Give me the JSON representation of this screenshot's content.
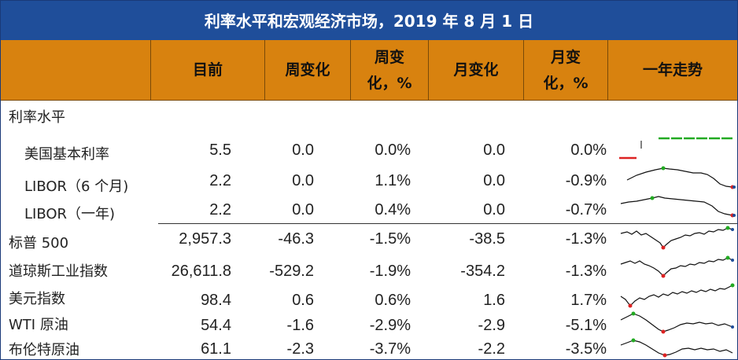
{
  "title": "利率水平和宏观经济市场，2019 年 8 月 1 日",
  "headers": {
    "current": "目前",
    "week_change": "周变化",
    "week_change_pct_1": "周变",
    "week_change_pct_2": "化，%",
    "month_change": "月变化",
    "month_change_pct_1": "月变",
    "month_change_pct_2": "化，%",
    "trend": "一年走势"
  },
  "section_rates": "利率水平",
  "rows": [
    {
      "label": "美国基本利率",
      "current": "5.5",
      "week": "0.0",
      "week_pct": "0.0%",
      "month": "0.0",
      "month_pct": "0.0%"
    },
    {
      "label": "LIBOR（6 个月)",
      "current": "2.2",
      "week": "0.0",
      "week_pct": "1.1%",
      "month": "0.0",
      "month_pct": "-0.9%"
    },
    {
      "label": "LIBOR（一年)",
      "current": "2.2",
      "week": "0.0",
      "week_pct": "0.4%",
      "month": "0.0",
      "month_pct": "-0.7%"
    },
    {
      "label": "标普 500",
      "current": "2,957.3",
      "week": "-46.3",
      "week_pct": "-1.5%",
      "month": "-38.5",
      "month_pct": "-1.3%"
    },
    {
      "label": "道琼斯工业指数",
      "current": "26,611.8",
      "week": "-529.2",
      "week_pct": "-1.9%",
      "month": "-354.2",
      "month_pct": "-1.3%"
    },
    {
      "label": "美元指数",
      "current": "98.4",
      "week": "0.6",
      "week_pct": "0.6%",
      "month": "1.6",
      "month_pct": "1.7%"
    },
    {
      "label": "WTI 原油",
      "current": "54.4",
      "week": "-1.6",
      "week_pct": "-2.9%",
      "month": "-2.9",
      "month_pct": "-5.1%"
    },
    {
      "label": "布伦特原油",
      "current": "61.1",
      "week": "-2.3",
      "week_pct": "-3.7%",
      "month": "-2.2",
      "month_pct": "-3.5%"
    }
  ],
  "colors": {
    "title_bg": "#1f4e9a",
    "header_bg": "#d8820f",
    "spark_line": "#111111",
    "high_marker": "#22aa22",
    "low_marker": "#dd2222",
    "end_marker": "#1f4e9a"
  }
}
